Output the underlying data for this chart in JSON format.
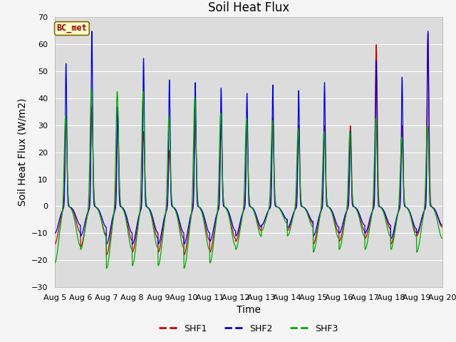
{
  "title": "Soil Heat Flux",
  "ylabel": "Soil Heat Flux (W/m2)",
  "xlabel": "Time",
  "annotation": "BC_met",
  "ylim": [
    -30,
    70
  ],
  "yticks": [
    -30,
    -20,
    -10,
    0,
    10,
    20,
    30,
    40,
    50,
    60,
    70
  ],
  "xtick_labels": [
    "Aug 5",
    "Aug 6",
    "Aug 7",
    "Aug 8",
    "Aug 9",
    "Aug 10",
    "Aug 11",
    "Aug 12",
    "Aug 13",
    "Aug 14",
    "Aug 15",
    "Aug 16",
    "Aug 17",
    "Aug 18",
    "Aug 19",
    "Aug 20"
  ],
  "n_days": 15,
  "pts_per_day": 144,
  "colors": {
    "SHF1": "#cc0000",
    "SHF2": "#0000dd",
    "SHF3": "#00aa00",
    "background": "#dcdcdc",
    "fig_background": "#f5f5f5",
    "annotation_bg": "#ffffcc",
    "annotation_border": "#886600",
    "grid": "#ffffff"
  },
  "shf2_peaks": [
    53,
    65,
    37,
    55,
    47,
    46,
    44,
    42,
    45,
    43,
    46,
    28,
    54,
    48,
    65
  ],
  "shf1_peaks": [
    31,
    37,
    34,
    28,
    21,
    32,
    31,
    29,
    33,
    30,
    30,
    30,
    60,
    30,
    64
  ],
  "shf3_peaks": [
    34,
    44,
    43,
    43,
    34,
    41,
    35,
    33,
    32,
    29,
    28,
    28,
    33,
    26,
    30
  ],
  "shf1_trough": [
    -14,
    -15,
    -18,
    -17,
    -17,
    -18,
    -17,
    -13,
    -7,
    -9,
    -14,
    -13,
    -12,
    -14,
    -11
  ],
  "shf2_trough": [
    -10,
    -11,
    -14,
    -14,
    -14,
    -14,
    -13,
    -11,
    -7,
    -8,
    -11,
    -10,
    -10,
    -12,
    -10
  ],
  "shf3_trough": [
    -21,
    -16,
    -23,
    -22,
    -22,
    -23,
    -21,
    -16,
    -9,
    -11,
    -17,
    -16,
    -16,
    -16,
    -17
  ],
  "title_fontsize": 12,
  "axis_label_fontsize": 10,
  "tick_fontsize": 8
}
